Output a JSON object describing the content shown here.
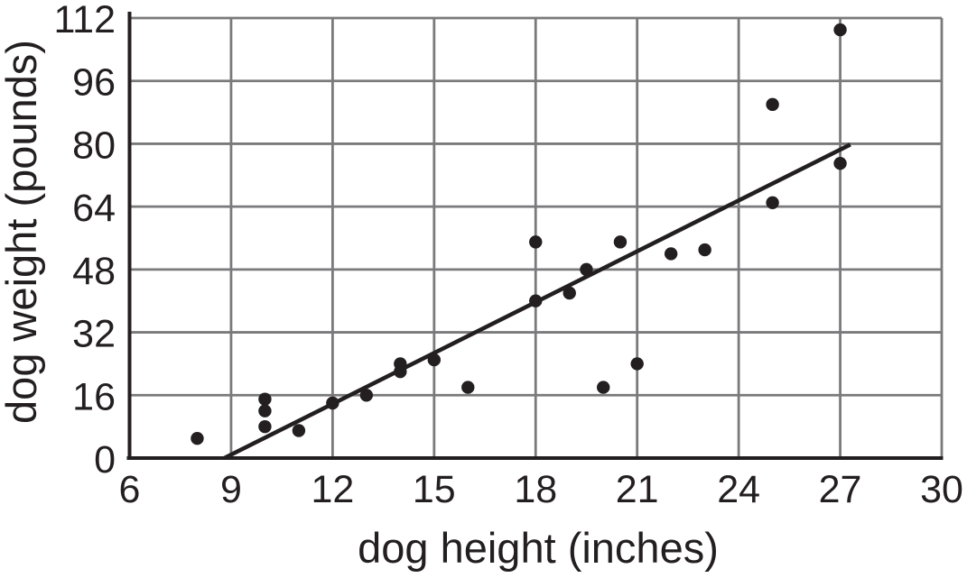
{
  "chart_data": {
    "type": "scatter",
    "title": "",
    "xlabel": "dog height (inches)",
    "ylabel": "dog weight (pounds)",
    "xlim": [
      6,
      30
    ],
    "ylim": [
      0,
      112
    ],
    "x_ticks": [
      6,
      9,
      12,
      15,
      18,
      21,
      24,
      27,
      30
    ],
    "y_ticks": [
      0,
      16,
      32,
      48,
      64,
      80,
      96,
      112
    ],
    "grid": true,
    "legend": "none",
    "points": [
      [
        8,
        5
      ],
      [
        10,
        8
      ],
      [
        10,
        12
      ],
      [
        10,
        15
      ],
      [
        11,
        7
      ],
      [
        12,
        14
      ],
      [
        13,
        16
      ],
      [
        14,
        22
      ],
      [
        14,
        24
      ],
      [
        15,
        25
      ],
      [
        16,
        18
      ],
      [
        18,
        40
      ],
      [
        18,
        55
      ],
      [
        19,
        42
      ],
      [
        19.5,
        48
      ],
      [
        20,
        18
      ],
      [
        20.5,
        55
      ],
      [
        21,
        24
      ],
      [
        22,
        52
      ],
      [
        23,
        53
      ],
      [
        25,
        65
      ],
      [
        25,
        90
      ],
      [
        27,
        75
      ],
      [
        27,
        109
      ]
    ],
    "trend_line": {
      "x1": 8.8,
      "y1": 0,
      "x2": 27.3,
      "y2": 79.8
    },
    "colors": {
      "point": "#231f20",
      "trend": "#231f20",
      "axis": "#231f20",
      "grid": "#7a7a7c",
      "text": "#231f20",
      "background": "#ffffff"
    }
  }
}
